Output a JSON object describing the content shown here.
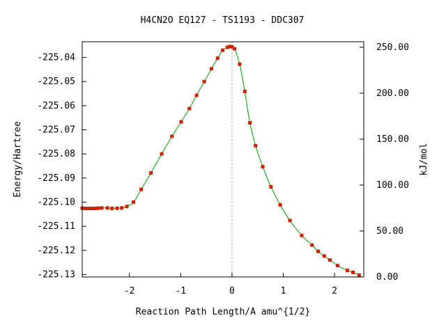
{
  "chart_data": {
    "type": "line",
    "title": "H4CN2O   EQ127 - TS1193 - DDC307",
    "xlabel": "Reaction Path Length/A amu^{1/2}",
    "ylabel": "Energy/Hartree",
    "y2label": "kJ/mol",
    "xlim": [
      -2.92,
      2.57
    ],
    "ylim": [
      -225.131,
      -225.0335
    ],
    "y2lim": [
      0.0,
      256.0
    ],
    "grid": false,
    "x_ticks": [
      -2,
      -1,
      0,
      1,
      2
    ],
    "x_tick_labels": [
      "-2",
      "-1",
      "0",
      "1",
      "2"
    ],
    "y_ticks": [
      -225.04,
      -225.05,
      -225.06,
      -225.07,
      -225.08,
      -225.09,
      -225.1,
      -225.11,
      -225.12,
      -225.13
    ],
    "y_tick_labels": [
      "-225.04",
      "-225.05",
      "-225.06",
      "-225.07",
      "-225.08",
      "-225.09",
      "-225.10",
      "-225.11",
      "-225.12",
      "-225.13"
    ],
    "y2_ticks": [
      250,
      200,
      150,
      100,
      50,
      0
    ],
    "y2_tick_labels": [
      "250.00",
      "200.00",
      "150.00",
      "100.00",
      "50.00",
      "0.00"
    ],
    "ts_marker_x": 0.0,
    "curve_color": "#00a000",
    "point_color": "#cc2200",
    "marker_line_color": "#999999",
    "series": [
      {
        "x": [
          -2.92,
          -2.86,
          -2.8,
          -2.73,
          -2.67,
          -2.61,
          -2.54,
          -2.43,
          -2.34,
          -2.24,
          -2.15,
          -2.05,
          -1.92,
          -1.77,
          -1.58,
          -1.37,
          -1.17,
          -0.99,
          -0.83,
          -0.69,
          -0.54,
          -0.4,
          -0.28,
          -0.18,
          -0.09,
          -0.04,
          0.0,
          0.05,
          0.15,
          0.25,
          0.35,
          0.46,
          0.6,
          0.76,
          0.94,
          1.13,
          1.36,
          1.56,
          1.68,
          1.8,
          1.91,
          2.06,
          2.25,
          2.36,
          2.48
        ],
        "y": [
          -225.1025,
          -225.1026,
          -225.1026,
          -225.1026,
          -225.1026,
          -225.1025,
          -225.1024,
          -225.1024,
          -225.1026,
          -225.1025,
          -225.1024,
          -225.1018,
          -225.1,
          -225.0947,
          -225.0879,
          -225.08,
          -225.0727,
          -225.0667,
          -225.0612,
          -225.0557,
          -225.05,
          -225.0447,
          -225.0403,
          -225.037,
          -225.0358,
          -225.0355,
          -225.0356,
          -225.0364,
          -225.0428,
          -225.0541,
          -225.0671,
          -225.0766,
          -225.0853,
          -225.0936,
          -225.1011,
          -225.1076,
          -225.1138,
          -225.1178,
          -225.1204,
          -225.1223,
          -225.124,
          -225.1263,
          -225.1283,
          -225.1291,
          -225.1303
        ]
      }
    ]
  }
}
